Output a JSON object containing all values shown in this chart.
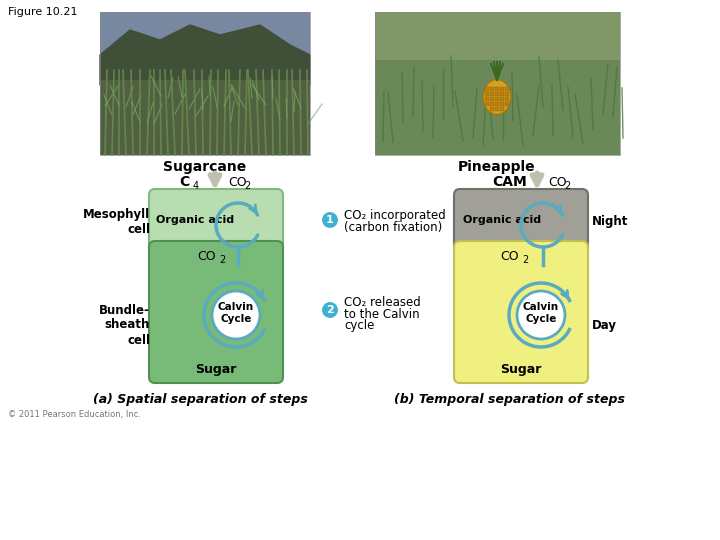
{
  "figure_label": "Figure 10.21",
  "sugarcane_label": "Sugarcane",
  "pineapple_label": "Pineapple",
  "cam_label": "CAM",
  "mesophyll_label": "Mesophyll\ncell",
  "bundle_label": "Bundle-\nsheath\ncell",
  "organic_acid_label": "Organic acid",
  "calvin_label": "Calvin\nCycle",
  "sugar_label": "Sugar",
  "night_label": "Night",
  "day_label": "Day",
  "step1_text_line1": "CO₂ incorporated",
  "step1_text_line2": "(carbon fixation)",
  "step2_text_line1": "CO₂ released",
  "step2_text_line2": "to the Calvin",
  "step2_text_line3": "cycle",
  "caption_a": "(a) Spatial separation of steps",
  "caption_b": "(b) Temporal separation of steps",
  "copyright": "© 2011 Pearson Education, Inc.",
  "bg_color": "#ffffff",
  "light_green": "#b8ddb0",
  "dark_green": "#78ba78",
  "gray_color": "#a0a098",
  "yellow_color": "#f0f080",
  "cycle_color": "#5aaac0",
  "arrow_gray": "#c0c0b8",
  "step_circle_color": "#40b0d0",
  "photo_left_sky": "#8090a8",
  "photo_left_mountain": "#506040",
  "photo_left_field": "#486040",
  "photo_right_sky": "#708870",
  "photo_right_field": "#607850"
}
